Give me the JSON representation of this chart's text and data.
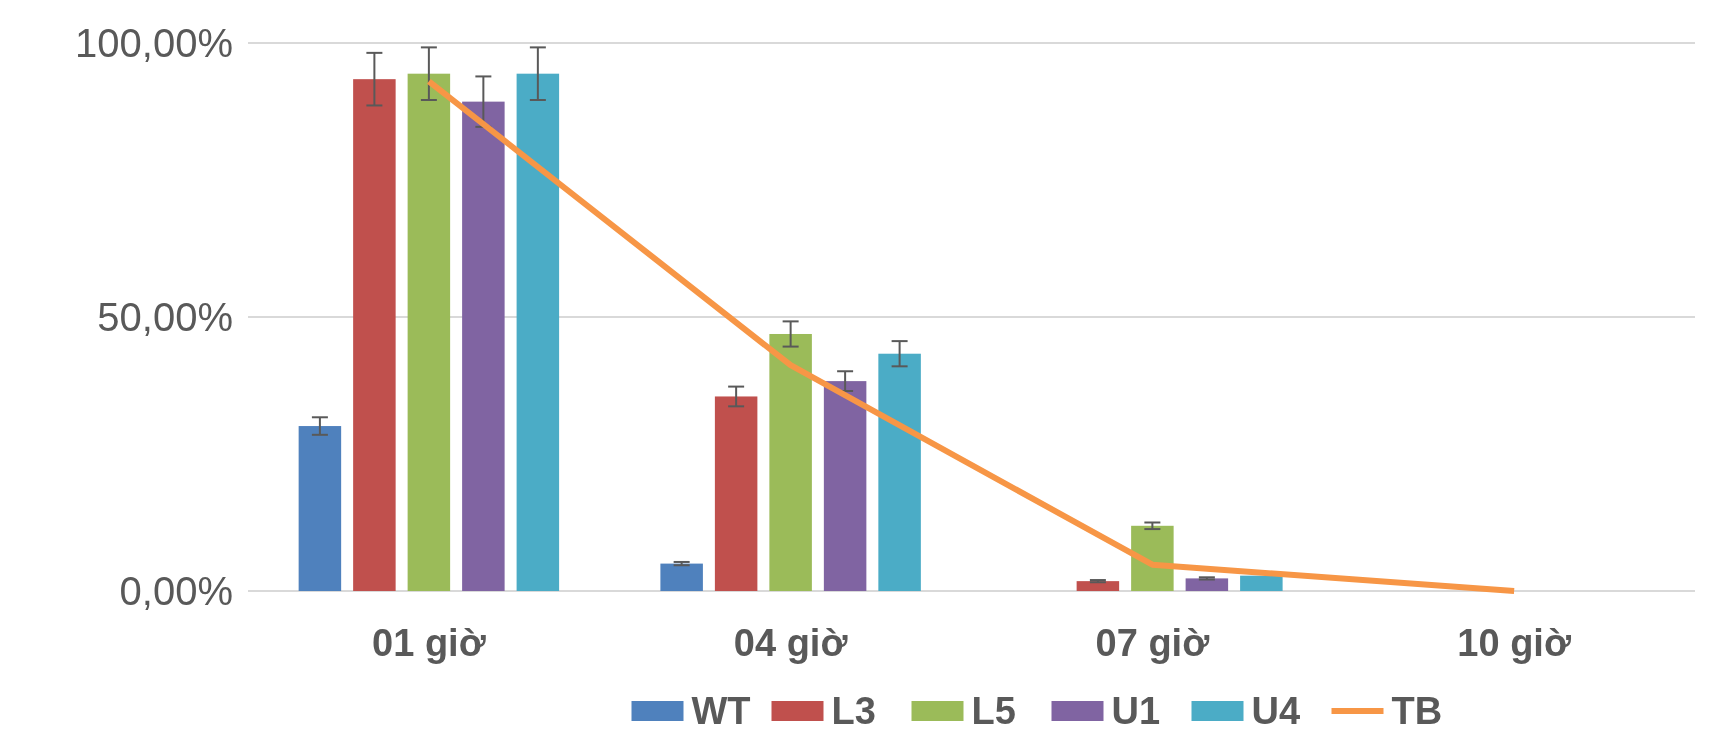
{
  "chart_data": {
    "type": "bar",
    "categories": [
      "01 giờ",
      "04 giờ",
      "07 giờ",
      "10 giờ"
    ],
    "series": [
      {
        "name": "WT",
        "color": "#4f81bd",
        "values": [
          30.1,
          5.0,
          0,
          0
        ],
        "errors": [
          1.6,
          0.3,
          null,
          null
        ]
      },
      {
        "name": "L3",
        "color": "#c0504d",
        "values": [
          93.4,
          35.5,
          1.8,
          0
        ],
        "errors": [
          4.8,
          1.8,
          0.2,
          null
        ]
      },
      {
        "name": "L5",
        "color": "#9bbb59",
        "values": [
          94.4,
          46.9,
          11.9,
          0
        ],
        "errors": [
          4.8,
          2.3,
          0.6,
          null
        ]
      },
      {
        "name": "U1",
        "color": "#8064a2",
        "values": [
          89.3,
          38.3,
          2.3,
          0
        ],
        "errors": [
          4.6,
          1.8,
          0.2,
          null
        ]
      },
      {
        "name": "U4",
        "color": "#4bacc6",
        "values": [
          94.4,
          43.3,
          2.8,
          0
        ],
        "errors": [
          4.8,
          2.3,
          null,
          null
        ]
      },
      {
        "name": "TB",
        "color": "#f79646",
        "type": "line",
        "values": [
          93,
          41.2,
          4.8,
          0
        ]
      }
    ],
    "ylim": [
      0,
      100
    ],
    "yticks": [
      {
        "value": 0,
        "label": "0,00%"
      },
      {
        "value": 50,
        "label": "50,00%"
      },
      {
        "value": 100,
        "label": "100,00%"
      }
    ],
    "grid": "y",
    "legend": "bottom",
    "marker": "none"
  }
}
